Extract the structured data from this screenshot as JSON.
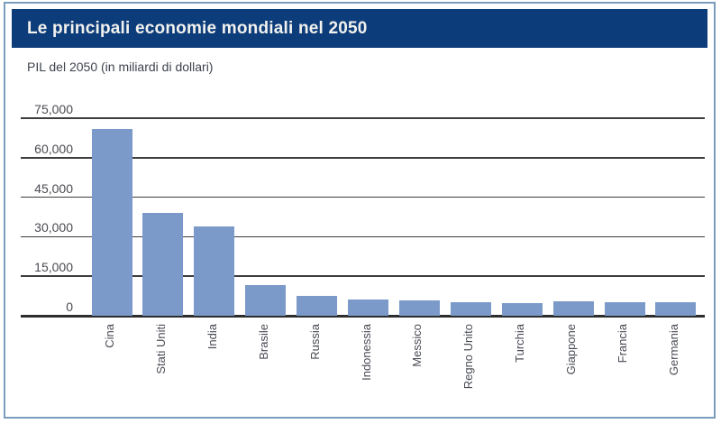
{
  "chart_data": {
    "type": "bar",
    "title": "Le principali economie mondiali nel 2050",
    "subtitle": "PIL del 2050 (in miliardi di dollari)",
    "categories": [
      "Cina",
      "Stati Uniti",
      "India",
      "Brasile",
      "Russia",
      "Indonessia",
      "Messico",
      "Regno Unito",
      "Turchia",
      "Giappone",
      "Francia",
      "Germania"
    ],
    "values": [
      71000,
      39000,
      34000,
      11500,
      7500,
      6000,
      5700,
      5300,
      4700,
      5500,
      5100,
      5300
    ],
    "xlabel": "",
    "ylabel": "PIL del 2050 (in miliardi di dollari)",
    "ylim": [
      0,
      75000
    ],
    "yticks": [
      0,
      15000,
      30000,
      45000,
      60000,
      75000
    ],
    "ytick_labels": [
      "0",
      "15,000",
      "30,000",
      "45,000",
      "60,000",
      "75,000"
    ],
    "grid": true,
    "legend_position": "none",
    "colors": {
      "bar": "#7b9ac9",
      "header_bg": "#0d3c7a",
      "header_text": "#f2f2ee",
      "grid_line": "#3d3d3d",
      "axis_line": "#2d2d2d",
      "label_text": "#4a4c54",
      "card_border": "#7b9dbd"
    }
  }
}
